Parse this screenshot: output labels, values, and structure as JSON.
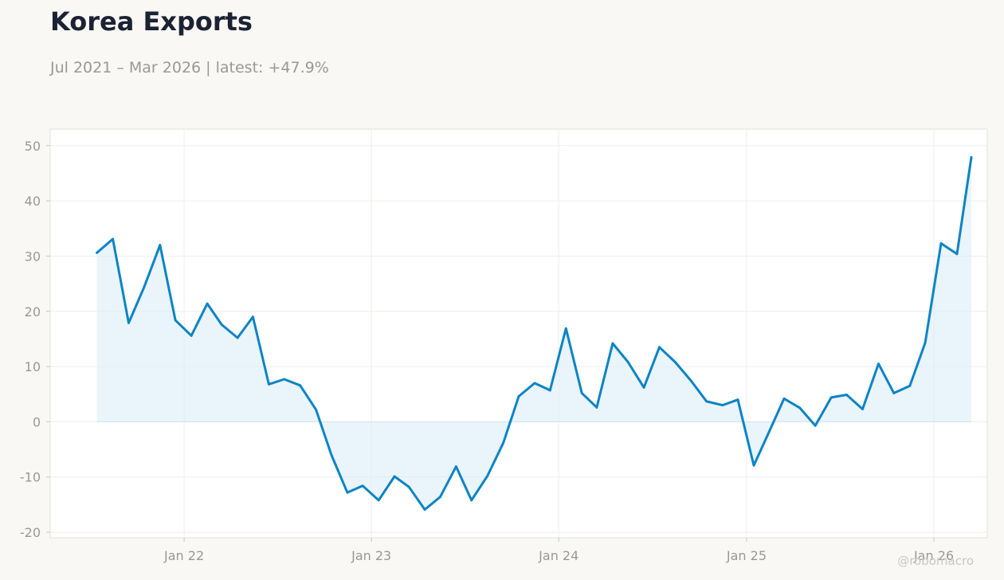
{
  "header": {
    "title": "Korea Exports",
    "subtitle": "Jul 2021 – Mar 2026 | latest: +47.9%"
  },
  "watermark": "@robomacro",
  "colors": {
    "background": "#f9f8f5",
    "line": "#0a84c6",
    "fill": "#dcecf8",
    "title": "#1b2233",
    "muted": "#9a9894"
  },
  "chart_data": {
    "type": "area",
    "title": "Korea Exports",
    "subtitle": "Jul 2021 – Mar 2026 | latest: +47.9%",
    "xlabel": "",
    "ylabel": "",
    "ylim": [
      -21,
      53
    ],
    "xlim": [
      "2021-04-15",
      "2026-04-15"
    ],
    "grid": true,
    "legend": "none",
    "yticks": [
      -20,
      -10,
      0,
      10,
      20,
      30,
      40,
      50
    ],
    "xticks": [
      {
        "date": "2022-01-01",
        "label": "Jan 22"
      },
      {
        "date": "2023-01-01",
        "label": "Jan 23"
      },
      {
        "date": "2024-01-01",
        "label": "Jan 24"
      },
      {
        "date": "2025-01-01",
        "label": "Jan 25"
      },
      {
        "date": "2026-01-01",
        "label": "Jan 26"
      }
    ],
    "series": [
      {
        "x": [
          "2021-07",
          "2021-08",
          "2021-09",
          "2021-10",
          "2021-11",
          "2021-12",
          "2022-01",
          "2022-02",
          "2022-03",
          "2022-04",
          "2022-05",
          "2022-06",
          "2022-07",
          "2022-08",
          "2022-09",
          "2022-10",
          "2022-11",
          "2022-12",
          "2023-01",
          "2023-02",
          "2023-03",
          "2023-04",
          "2023-05",
          "2023-06",
          "2023-07",
          "2023-08",
          "2023-09",
          "2023-10",
          "2023-11",
          "2023-12",
          "2024-01",
          "2024-02",
          "2024-03",
          "2024-04",
          "2024-05",
          "2024-06",
          "2024-07",
          "2024-08",
          "2024-09",
          "2024-10",
          "2024-11",
          "2024-12",
          "2025-01",
          "2025-02",
          "2025-03",
          "2025-04",
          "2025-05",
          "2025-06",
          "2025-07",
          "2025-08",
          "2025-09",
          "2025-10",
          "2025-11",
          "2025-12",
          "2026-01",
          "2026-02",
          "2026-03"
        ],
        "values": [
          30.6,
          33.1,
          17.9,
          24.4,
          32.0,
          18.4,
          15.6,
          21.4,
          17.6,
          15.2,
          19.0,
          6.8,
          7.7,
          6.6,
          2.2,
          -6.0,
          -12.8,
          -11.6,
          -14.2,
          -9.9,
          -11.8,
          -15.9,
          -13.6,
          -8.1,
          -14.2,
          -9.8,
          -3.8,
          4.6,
          7.0,
          5.7,
          16.9,
          5.2,
          2.6,
          14.2,
          10.8,
          6.2,
          13.5,
          10.8,
          7.4,
          3.7,
          3.0,
          4.0,
          -7.9,
          -1.6,
          4.2,
          2.5,
          -0.7,
          4.4,
          4.9,
          2.3,
          10.5,
          5.2,
          6.5,
          14.3,
          32.3,
          30.4,
          47.9
        ]
      }
    ]
  }
}
